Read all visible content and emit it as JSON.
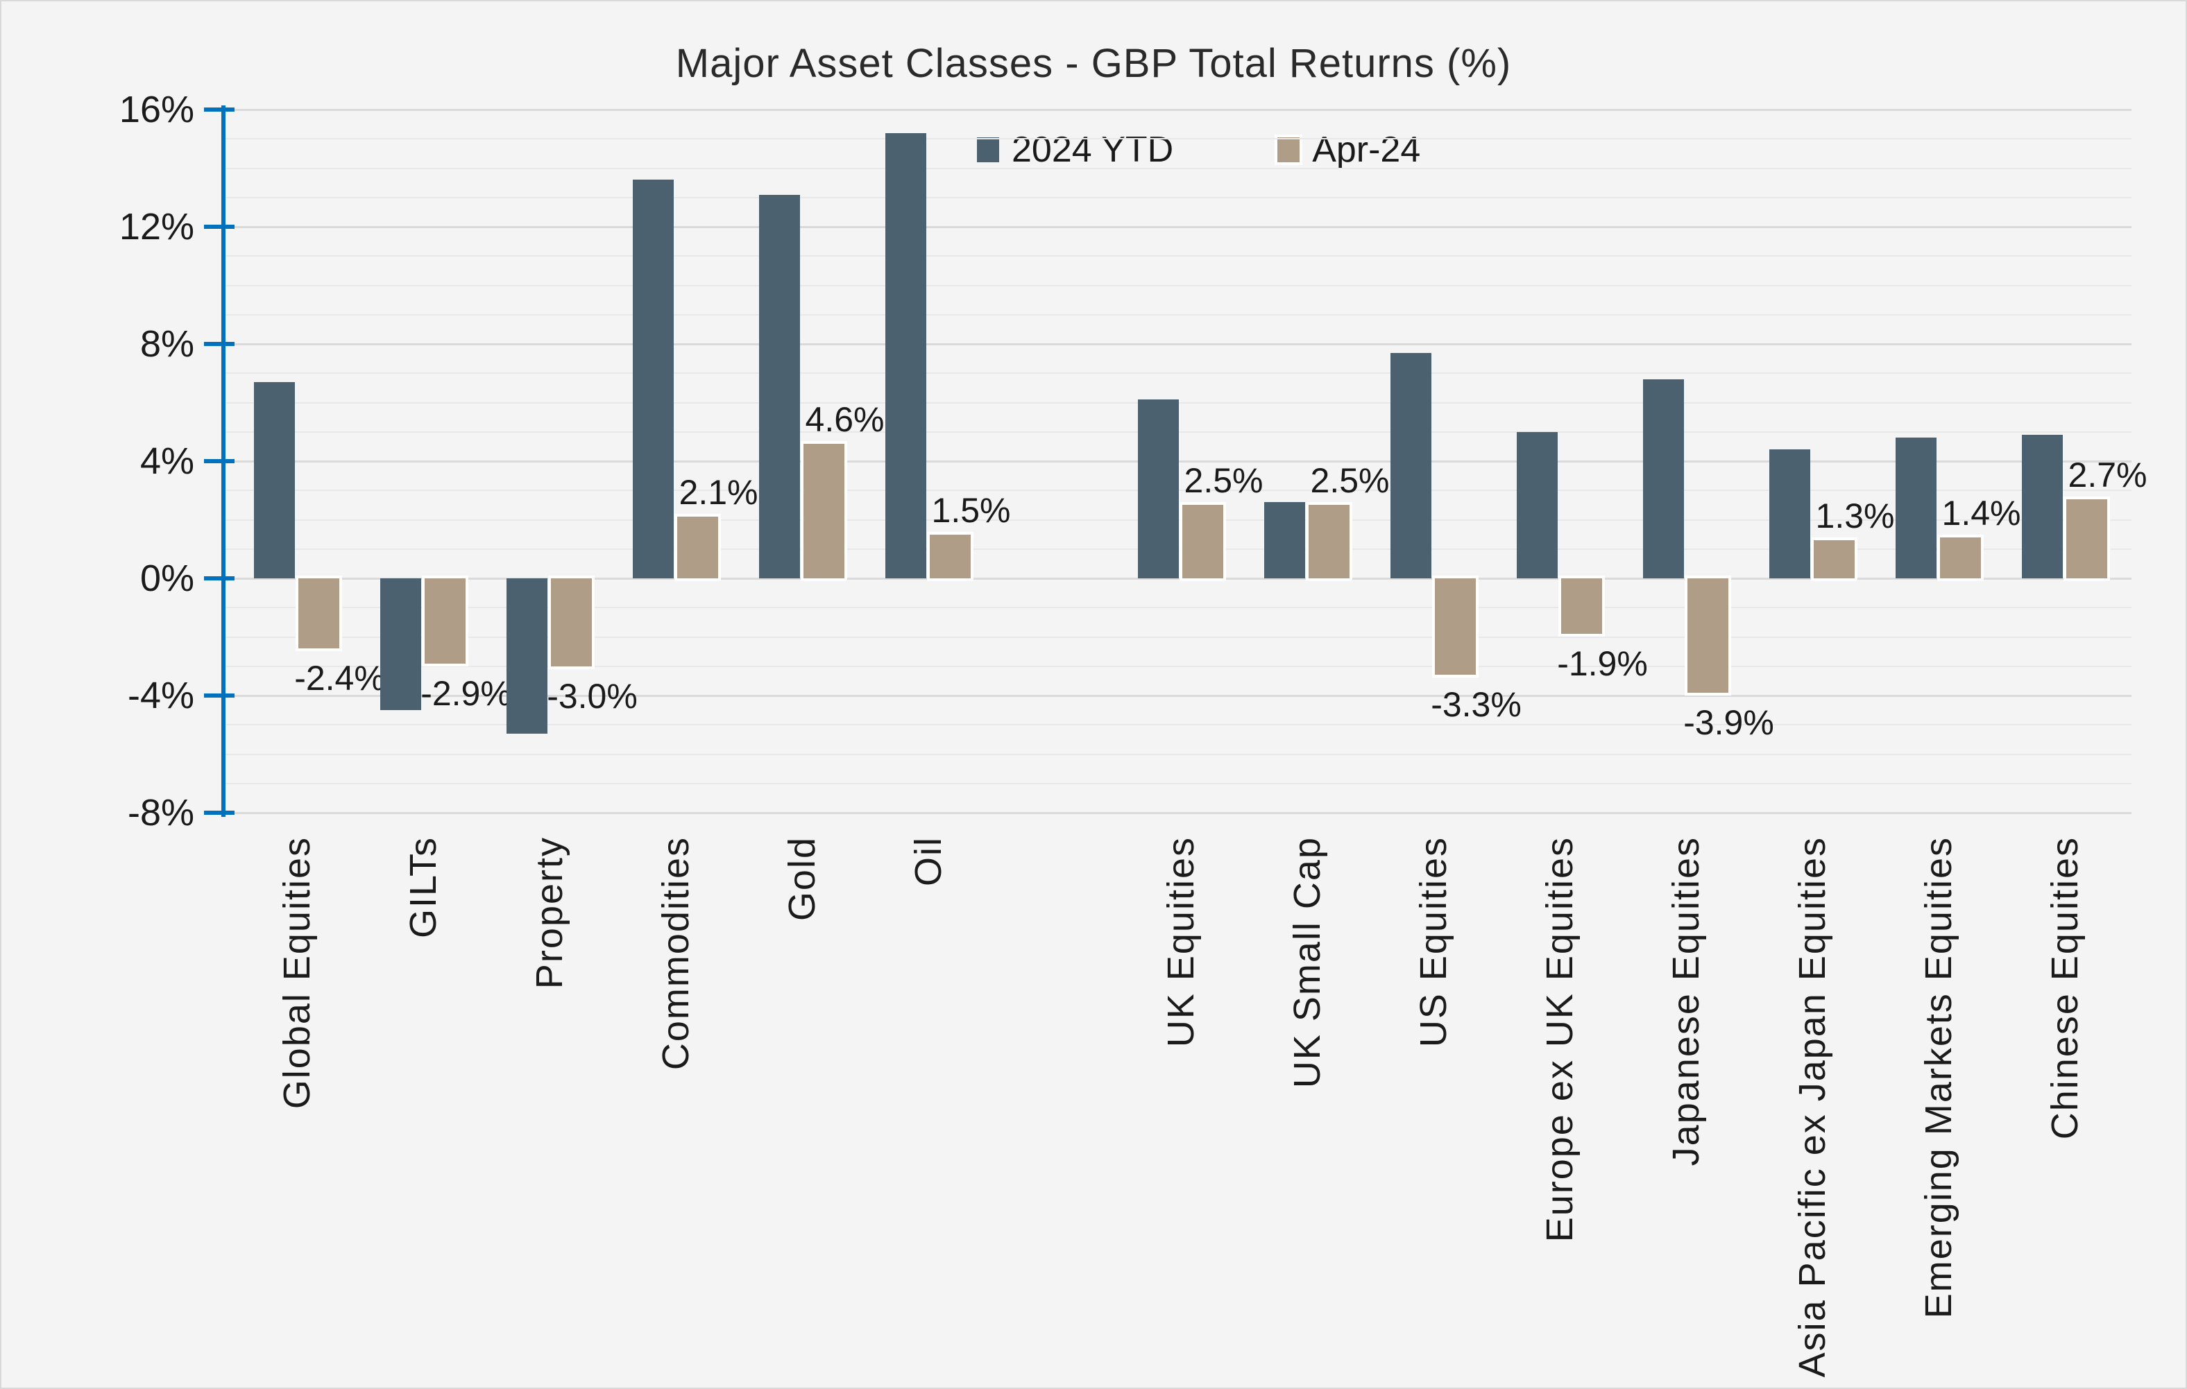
{
  "chart_data": {
    "type": "bar",
    "title": "Major Asset Classes - GBP Total Returns (%)",
    "categories": [
      "Global Equities",
      "GILTs",
      "Property",
      "Commodities",
      "Gold",
      "Oil",
      "UK Equities",
      "UK Small Cap",
      "US Equities",
      "Europe ex UK Equities",
      "Japanese Equities",
      "Asia Pacific ex Japan Equities",
      "Emerging Markets Equities",
      "Chinese Equities"
    ],
    "gap_after_category_index": 5,
    "series": [
      {
        "name": "2024 YTD",
        "color": "#4c616f",
        "values": [
          6.7,
          -4.5,
          -5.3,
          13.6,
          13.1,
          15.2,
          6.1,
          2.6,
          7.7,
          5.0,
          6.8,
          4.4,
          4.8,
          4.9
        ],
        "data_labels": []
      },
      {
        "name": "Apr-24",
        "color": "#b09d88",
        "outline_color": "#ffffff",
        "values": [
          -2.4,
          -2.9,
          -3.0,
          2.1,
          4.6,
          1.5,
          2.5,
          2.5,
          -3.3,
          -1.9,
          -3.9,
          1.3,
          1.4,
          2.7
        ],
        "data_labels": [
          "-2.4%",
          "-2.9%",
          "-3.0%",
          "2.1%",
          "4.6%",
          "1.5%",
          "2.5%",
          "2.5%",
          "-3.3%",
          "-1.9%",
          "-3.9%",
          "1.3%",
          "1.4%",
          "2.7%"
        ]
      }
    ],
    "y_axis": {
      "min": -8,
      "max": 16,
      "major_step": 4,
      "minor_step": 1,
      "tick_labels": [
        "16%",
        "12%",
        "8%",
        "4%",
        "0%",
        "-4%",
        "-8%"
      ],
      "axis_color": "#0071bc"
    },
    "layout_hints": {
      "legend_position": "top",
      "grid": "horizontal, minor every 1%, major every 4%",
      "value_labels_on_series": "Apr-24",
      "x_labels_rotation": "vertical bottom-to-top"
    }
  },
  "colors": {
    "background": "#f4f4f4",
    "page_border": "#d9d9d9",
    "grid_minor": "#e8e8e8",
    "grid_major": "#dadada",
    "axis": "#0071bc",
    "series_2024_ytd": "#4c616f",
    "series_apr_24": "#b09d88",
    "bar_outline": "#ffffff",
    "text": "#1a1a1a",
    "title_text": "#2a2a2a"
  }
}
